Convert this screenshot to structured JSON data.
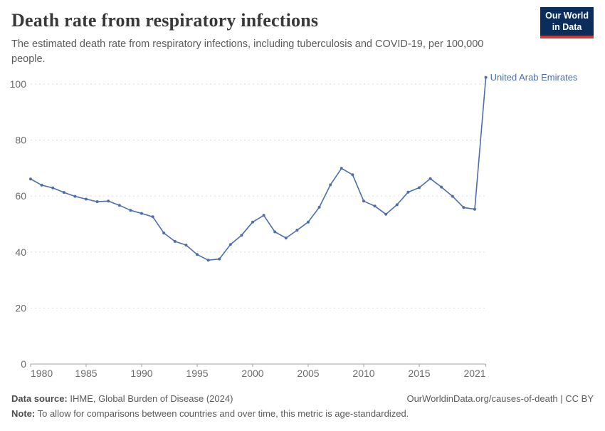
{
  "header": {
    "title": "Death rate from respiratory infections",
    "subtitle": "The estimated death rate from respiratory infections, including tuberculosis and COVID-19, per 100,000 people.",
    "logo": {
      "line1": "Our World",
      "line2": "in Data"
    }
  },
  "chart_data": {
    "type": "line",
    "title": "Death rate from respiratory infections",
    "xlabel": "",
    "ylabel": "",
    "xlim": [
      1980,
      2021
    ],
    "ylim": [
      0,
      100
    ],
    "x_ticks": [
      1980,
      1985,
      1990,
      1995,
      2000,
      2005,
      2010,
      2015,
      2021
    ],
    "y_ticks": [
      0,
      20,
      40,
      60,
      80,
      100
    ],
    "grid": "horizontal-dashed",
    "legend_position": "end-of-line-label",
    "x": [
      1980,
      1981,
      1982,
      1983,
      1984,
      1985,
      1986,
      1987,
      1988,
      1989,
      1990,
      1991,
      1992,
      1993,
      1994,
      1995,
      1996,
      1997,
      1998,
      1999,
      2000,
      2001,
      2002,
      2003,
      2004,
      2005,
      2006,
      2007,
      2008,
      2009,
      2010,
      2011,
      2012,
      2013,
      2014,
      2015,
      2016,
      2017,
      2018,
      2019,
      2020,
      2021
    ],
    "series": [
      {
        "name": "United Arab Emirates",
        "color": "#4c6ea9",
        "values": [
          66.1,
          63.9,
          62.9,
          61.3,
          59.9,
          58.9,
          58.0,
          58.2,
          56.7,
          54.9,
          53.8,
          52.6,
          46.8,
          43.8,
          42.5,
          39.1,
          37.1,
          37.5,
          42.7,
          46.0,
          50.7,
          53.1,
          47.2,
          45.0,
          47.8,
          50.7,
          56.0,
          64.0,
          69.9,
          67.6,
          58.2,
          56.4,
          53.5,
          56.9,
          61.4,
          63.0,
          66.2,
          63.2,
          59.9,
          55.9,
          55.3,
          102.4
        ]
      }
    ]
  },
  "colors": {
    "line": "#4c6ea9",
    "grid": "#dcdcdc",
    "axis": "#a3a3a3",
    "tick_text": "#6b6b6b",
    "logo_bg": "#0a2d5a",
    "logo_accent": "#cf3b34"
  },
  "footer": {
    "source_label": "Data source:",
    "source_text": "IHME, Global Burden of Disease (2024)",
    "attribution": "OurWorldinData.org/causes-of-death | CC BY",
    "note_label": "Note:",
    "note_text": "To allow for comparisons between countries and over time, this metric is age-standardized."
  }
}
